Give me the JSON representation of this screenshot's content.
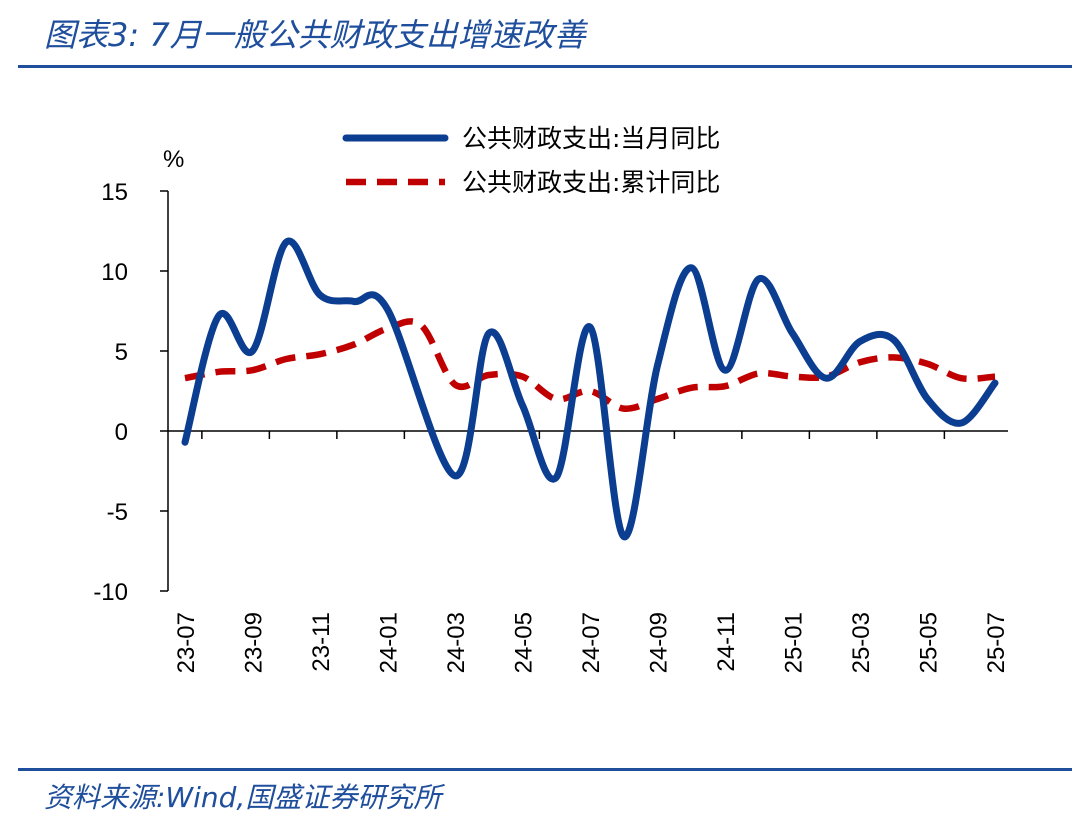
{
  "figure": {
    "title": "图表3:  7月一般公共财政支出增速改善",
    "source": "资料来源:Wind,国盛证券研究所"
  },
  "chart_data": {
    "type": "line",
    "yunit": "%",
    "ylim": [
      -10,
      15
    ],
    "yticks": [
      15,
      10,
      5,
      0,
      -5,
      -10
    ],
    "x": [
      "23-07",
      "23-08",
      "23-09",
      "23-10",
      "23-11",
      "23-12",
      "24-01",
      "24-02",
      "24-03",
      "24-04",
      "24-05",
      "24-06",
      "24-07",
      "24-08",
      "24-09",
      "24-10",
      "24-11",
      "24-12",
      "25-01",
      "25-02",
      "25-03",
      "25-04",
      "25-05",
      "25-06",
      "25-07"
    ],
    "xtick_labels": [
      "23-07",
      "23-09",
      "23-11",
      "24-01",
      "24-03",
      "24-05",
      "24-07",
      "24-09",
      "24-11",
      "25-01",
      "25-03",
      "25-05",
      "25-07"
    ],
    "legend_position": "top-center",
    "grid": false,
    "series": [
      {
        "name": "公共财政支出:当月同比",
        "color": "#0b3d91",
        "style": "solid",
        "values": [
          -0.7,
          7.2,
          5.0,
          11.8,
          8.5,
          8.1,
          7.6,
          null,
          -2.8,
          6.1,
          1.6,
          -2.9,
          6.5,
          -6.6,
          4.1,
          10.2,
          3.8,
          9.5,
          6.1,
          3.3,
          5.6,
          5.7,
          2.0,
          0.5,
          3.0
        ]
      },
      {
        "name": "公共财政支出:累计同比",
        "color": "#c00000",
        "style": "dashed",
        "values": [
          3.3,
          3.7,
          3.8,
          4.5,
          4.8,
          5.4,
          6.4,
          6.6,
          2.9,
          3.5,
          3.4,
          2.0,
          2.5,
          1.4,
          2.0,
          2.7,
          2.8,
          3.6,
          3.4,
          3.4,
          4.3,
          4.6,
          4.2,
          3.3,
          3.4
        ]
      }
    ]
  }
}
